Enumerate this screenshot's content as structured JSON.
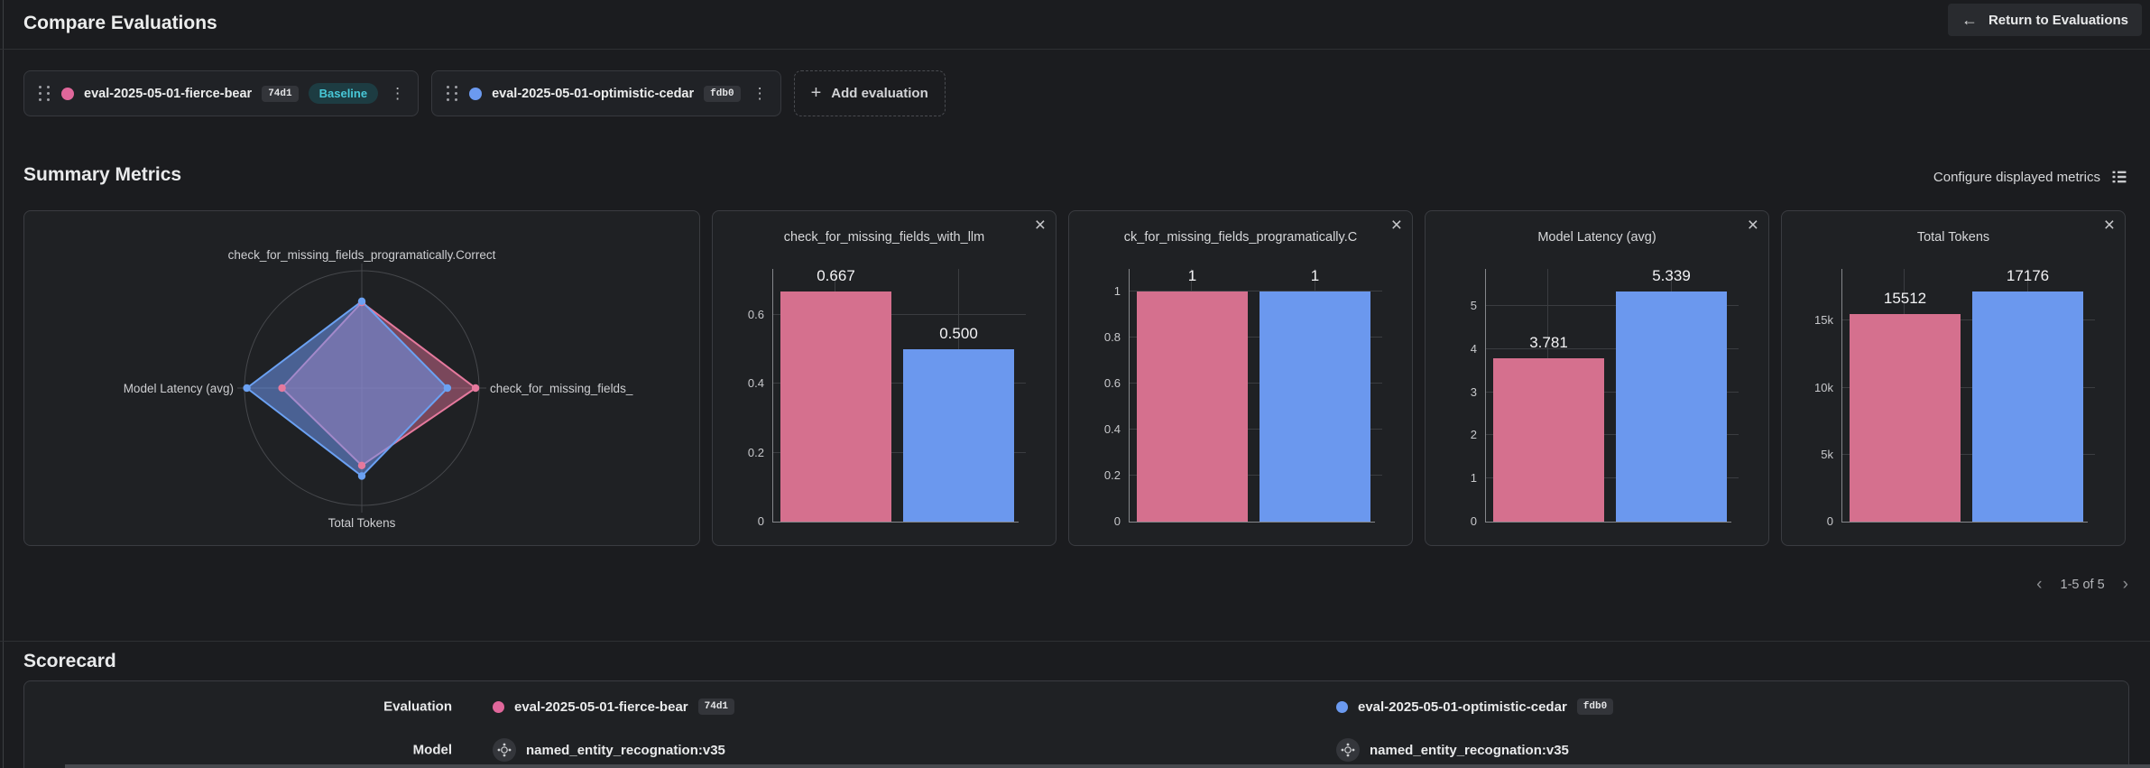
{
  "header": {
    "title": "Compare Evaluations",
    "return_label": "Return to Evaluations"
  },
  "evaluations": [
    {
      "name": "eval-2025-05-01-fierce-bear",
      "tag": "74d1",
      "badge": "Baseline",
      "color": "#e0679b"
    },
    {
      "name": "eval-2025-05-01-optimistic-cedar",
      "tag": "fdb0",
      "color": "#6b9af0"
    }
  ],
  "controls": {
    "add_label": "Add evaluation"
  },
  "summary": {
    "title": "Summary Metrics",
    "configure_label": "Configure displayed metrics",
    "pagination": "1-5 of 5"
  },
  "bar_colors": [
    "#d5708e",
    "#6b98ee"
  ],
  "chart_data": [
    {
      "type": "radar",
      "axes": [
        "check_for_missing_fields_programatically.Correct",
        "check_for_missing_fields_",
        "Total Tokens",
        "Model Latency (avg)"
      ],
      "series": [
        {
          "name": "eval-2025-05-01-fierce-bear",
          "stroke": "#e5799d",
          "fill": "rgba(214,109,146,0.5)",
          "values_norm": [
            0.73,
            0.97,
            0.66,
            0.68
          ]
        },
        {
          "name": "eval-2025-05-01-optimistic-cedar",
          "stroke": "#6ba1f2",
          "fill": "rgba(109,152,238,0.55)",
          "values_norm": [
            0.74,
            0.73,
            0.75,
            0.98
          ]
        }
      ],
      "legend": "off",
      "grid": "outer-circle"
    },
    {
      "type": "bar",
      "title": "check_for_missing_fields_with_llm",
      "categories": [
        "eval-2025-05-01-fierce-bear",
        "eval-2025-05-01-optimistic-cedar"
      ],
      "values": [
        0.667,
        0.5
      ],
      "value_labels": [
        "0.667",
        "0.500"
      ],
      "yticks": [
        {
          "v": 0,
          "label": "0"
        },
        {
          "v": 0.2,
          "label": "0.2"
        },
        {
          "v": 0.4,
          "label": "0.4"
        },
        {
          "v": 0.6,
          "label": "0.6"
        }
      ]
    },
    {
      "type": "bar",
      "title": "ck_for_missing_fields_programatically.C",
      "categories": [
        "eval-2025-05-01-fierce-bear",
        "eval-2025-05-01-optimistic-cedar"
      ],
      "values": [
        1,
        1
      ],
      "value_labels": [
        "1",
        "1"
      ],
      "yticks": [
        {
          "v": 0,
          "label": "0"
        },
        {
          "v": 0.2,
          "label": "0.2"
        },
        {
          "v": 0.4,
          "label": "0.4"
        },
        {
          "v": 0.6,
          "label": "0.6"
        },
        {
          "v": 0.8,
          "label": "0.8"
        },
        {
          "v": 1,
          "label": "1"
        }
      ]
    },
    {
      "type": "bar",
      "title": "Model Latency (avg)",
      "categories": [
        "eval-2025-05-01-fierce-bear",
        "eval-2025-05-01-optimistic-cedar"
      ],
      "values": [
        3.781,
        5.339
      ],
      "value_labels": [
        "3.781",
        "5.339"
      ],
      "yticks": [
        {
          "v": 0,
          "label": "0"
        },
        {
          "v": 1,
          "label": "1"
        },
        {
          "v": 2,
          "label": "2"
        },
        {
          "v": 3,
          "label": "3"
        },
        {
          "v": 4,
          "label": "4"
        },
        {
          "v": 5,
          "label": "5"
        }
      ]
    },
    {
      "type": "bar",
      "title": "Total Tokens",
      "categories": [
        "eval-2025-05-01-fierce-bear",
        "eval-2025-05-01-optimistic-cedar"
      ],
      "values": [
        15512,
        17176
      ],
      "value_labels": [
        "15512",
        "17176"
      ],
      "yticks": [
        {
          "v": 0,
          "label": "0"
        },
        {
          "v": 5000,
          "label": "5k"
        },
        {
          "v": 10000,
          "label": "10k"
        },
        {
          "v": 15000,
          "label": "15k"
        }
      ]
    }
  ],
  "scorecard": {
    "title": "Scorecard",
    "rows": [
      {
        "label": "Evaluation",
        "cells": [
          {
            "text": "eval-2025-05-01-fierce-bear",
            "tag": "74d1",
            "dot": "#e0679b"
          },
          {
            "text": "eval-2025-05-01-optimistic-cedar",
            "tag": "fdb0",
            "dot": "#6b9af0"
          }
        ]
      },
      {
        "label": "Model",
        "cells": [
          {
            "text": "named_entity_recognation:v35",
            "icon": "model-icon"
          },
          {
            "text": "named_entity_recognation:v35",
            "icon": "model-icon"
          }
        ]
      }
    ]
  }
}
